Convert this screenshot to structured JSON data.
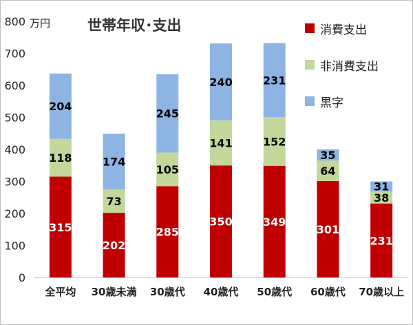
{
  "chart_data": {
    "type": "stacked-bar",
    "title": "世帯年収･支出",
    "unit": "万円",
    "categories": [
      "全平均",
      "30歳未満",
      "30歳代",
      "40歳代",
      "50歳代",
      "60歳代",
      "70歳以上"
    ],
    "series": [
      {
        "name": "消費支出",
        "color": "#c00000",
        "label_color": "#ffffff",
        "values": [
          315,
          202,
          285,
          350,
          349,
          301,
          231
        ]
      },
      {
        "name": "非消費支出",
        "color": "#c4d79b",
        "label_color": "#000000",
        "values": [
          118,
          73,
          105,
          141,
          152,
          64,
          38
        ]
      },
      {
        "name": "黒字",
        "color": "#8db4e2",
        "label_color": "#000000",
        "values": [
          204,
          174,
          245,
          240,
          231,
          35,
          31
        ]
      }
    ],
    "ylim": [
      0,
      800
    ],
    "yticks": [
      0,
      100,
      200,
      300,
      400,
      500,
      600,
      700,
      800
    ],
    "grid": false,
    "legend_position": "top-right"
  }
}
